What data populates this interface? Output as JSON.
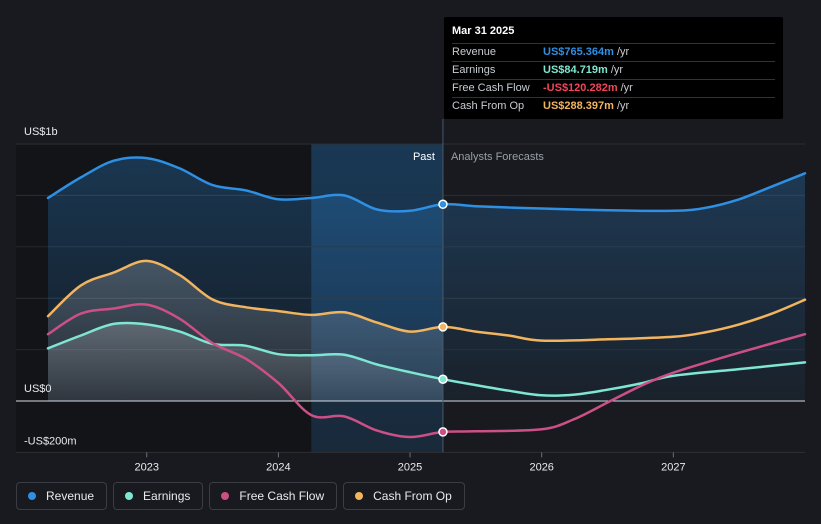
{
  "tooltip": {
    "date": "Mar 31 2025",
    "rows": [
      {
        "name": "Revenue",
        "value": "US$765.364m",
        "unit": "/yr",
        "color": "#2f8fe3"
      },
      {
        "name": "Earnings",
        "value": "US$84.719m",
        "unit": "/yr",
        "color": "#7ee6d2"
      },
      {
        "name": "Free Cash Flow",
        "value": "-US$120.282m",
        "unit": "/yr",
        "color": "#f0455a"
      },
      {
        "name": "Cash From Op",
        "value": "US$288.397m",
        "unit": "/yr",
        "color": "#f2b45f"
      }
    ]
  },
  "chart_data": {
    "type": "line",
    "title": "",
    "x_unit": "year",
    "y_unit": "US$m",
    "ylim": [
      -200,
      1000
    ],
    "y_tick_labels": [
      {
        "value": 1000,
        "label": "US$1b"
      },
      {
        "value": 0,
        "label": "US$0"
      },
      {
        "value": -200,
        "label": "-US$200m"
      }
    ],
    "x_ticks": [
      2023,
      2024,
      2025,
      2026,
      2027
    ],
    "xlim": [
      2022.25,
      2028.0
    ],
    "past_label": "Past",
    "forecast_label": "Analysts Forecasts",
    "present_x": 2025.25,
    "shade_start_x": 2024.25,
    "series": [
      {
        "name": "Revenue",
        "color": "#2f8fe3",
        "points": [
          [
            2022.25,
            790
          ],
          [
            2022.5,
            870
          ],
          [
            2022.75,
            935
          ],
          [
            2023.0,
            945
          ],
          [
            2023.25,
            905
          ],
          [
            2023.5,
            840
          ],
          [
            2023.75,
            820
          ],
          [
            2024.0,
            785
          ],
          [
            2024.25,
            790
          ],
          [
            2024.5,
            800
          ],
          [
            2024.75,
            745
          ],
          [
            2025.0,
            740
          ],
          [
            2025.25,
            765.4
          ],
          [
            2025.5,
            758
          ],
          [
            2025.75,
            753
          ],
          [
            2026.0,
            749
          ],
          [
            2026.5,
            742
          ],
          [
            2027.0,
            740
          ],
          [
            2027.25,
            752
          ],
          [
            2027.5,
            785
          ],
          [
            2027.75,
            835
          ],
          [
            2028.0,
            886
          ]
        ]
      },
      {
        "name": "Earnings",
        "color": "#7ee6d2",
        "points": [
          [
            2022.25,
            205
          ],
          [
            2022.5,
            255
          ],
          [
            2022.75,
            300
          ],
          [
            2023.0,
            298
          ],
          [
            2023.25,
            270
          ],
          [
            2023.5,
            222
          ],
          [
            2023.75,
            215
          ],
          [
            2024.0,
            182
          ],
          [
            2024.25,
            178
          ],
          [
            2024.5,
            180
          ],
          [
            2024.75,
            142
          ],
          [
            2025.0,
            112
          ],
          [
            2025.25,
            84.7
          ],
          [
            2025.5,
            62
          ],
          [
            2025.75,
            40
          ],
          [
            2026.0,
            22
          ],
          [
            2026.25,
            25
          ],
          [
            2026.5,
            44
          ],
          [
            2026.75,
            68
          ],
          [
            2027.0,
            98
          ],
          [
            2027.5,
            124
          ],
          [
            2028.0,
            150
          ]
        ]
      },
      {
        "name": "Free Cash Flow",
        "color": "#cc4f86",
        "points": [
          [
            2022.25,
            260
          ],
          [
            2022.5,
            340
          ],
          [
            2022.75,
            360
          ],
          [
            2023.0,
            375
          ],
          [
            2023.25,
            320
          ],
          [
            2023.5,
            225
          ],
          [
            2023.75,
            165
          ],
          [
            2024.0,
            70
          ],
          [
            2024.25,
            -55
          ],
          [
            2024.5,
            -60
          ],
          [
            2024.75,
            -115
          ],
          [
            2025.0,
            -140
          ],
          [
            2025.25,
            -120.3
          ],
          [
            2025.5,
            -118
          ],
          [
            2026.0,
            -110
          ],
          [
            2026.25,
            -70
          ],
          [
            2026.5,
            -6
          ],
          [
            2026.75,
            58
          ],
          [
            2027.0,
            110
          ],
          [
            2027.5,
            188
          ],
          [
            2028.0,
            260
          ]
        ]
      },
      {
        "name": "Cash From Op",
        "color": "#f2b45f",
        "points": [
          [
            2022.25,
            330
          ],
          [
            2022.5,
            450
          ],
          [
            2022.75,
            500
          ],
          [
            2023.0,
            545
          ],
          [
            2023.25,
            490
          ],
          [
            2023.5,
            395
          ],
          [
            2023.75,
            365
          ],
          [
            2024.0,
            350
          ],
          [
            2024.25,
            335
          ],
          [
            2024.5,
            345
          ],
          [
            2024.75,
            305
          ],
          [
            2025.0,
            270
          ],
          [
            2025.25,
            288.4
          ],
          [
            2025.5,
            270
          ],
          [
            2025.75,
            255
          ],
          [
            2026.0,
            235
          ],
          [
            2026.5,
            240
          ],
          [
            2027.0,
            250
          ],
          [
            2027.25,
            268
          ],
          [
            2027.5,
            298
          ],
          [
            2027.75,
            340
          ],
          [
            2028.0,
            394
          ]
        ]
      }
    ]
  },
  "legend": [
    {
      "name": "Revenue",
      "color": "#2f8fe3"
    },
    {
      "name": "Earnings",
      "color": "#7ee6d2"
    },
    {
      "name": "Free Cash Flow",
      "color": "#cc4f86"
    },
    {
      "name": "Cash From Op",
      "color": "#f2b45f"
    }
  ]
}
